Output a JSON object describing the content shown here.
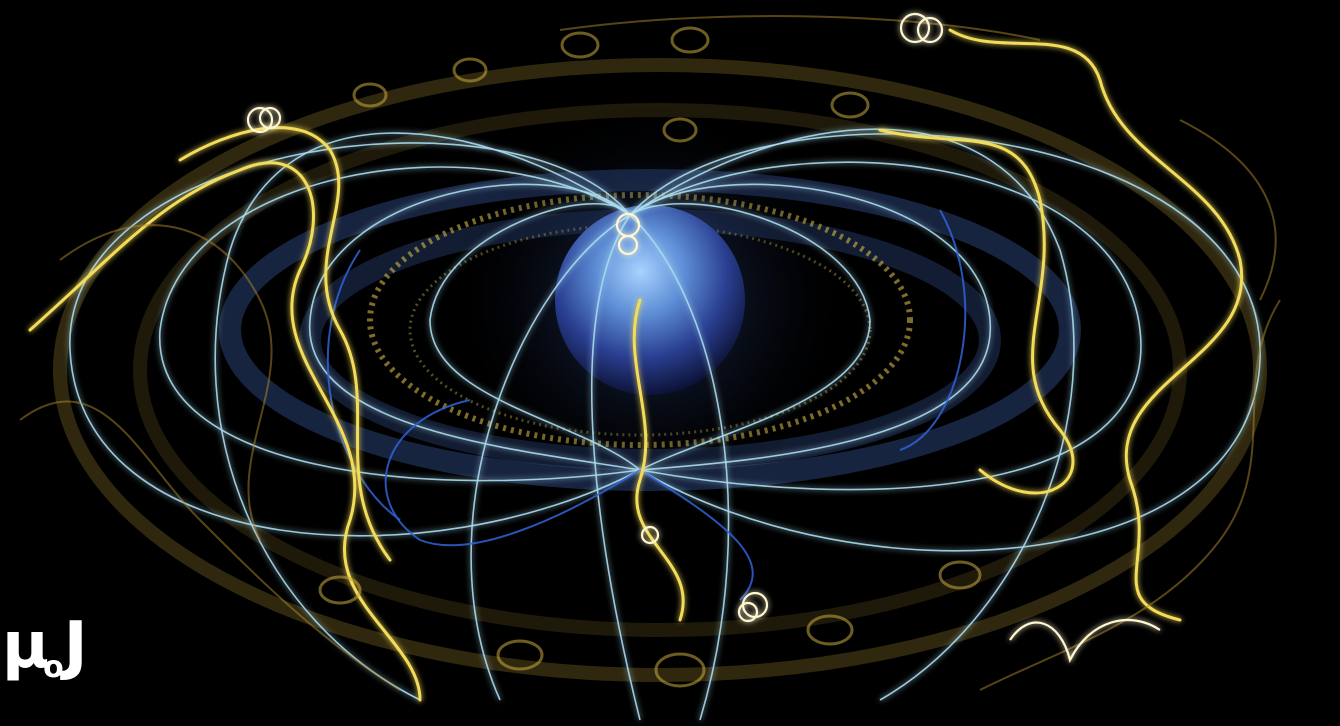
{
  "image": {
    "subject": "particles-spiraling-in-planetary-magnetic-field",
    "palette": {
      "background": "#000000",
      "field_lines": "#a8dcef",
      "field_lines_deep": "#2f63d8",
      "particle_trails": "#f3dc5a",
      "particle_glow": "#b08a2a",
      "planet_light": "#7ab3ef",
      "planet_dark": "#1b2c6e"
    }
  },
  "logo": {
    "symbol": "μ",
    "subscript": "o",
    "letter": "J"
  }
}
